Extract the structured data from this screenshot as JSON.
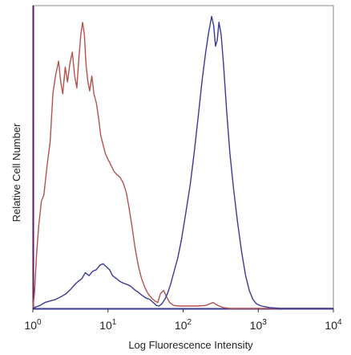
{
  "chart_data": {
    "type": "line",
    "xlabel": "Log Fluorescence Intensity",
    "ylabel": "Relative Cell Number",
    "xscale": "log",
    "xlim": [
      1,
      10000
    ],
    "ylim": [
      0,
      100
    ],
    "grid": false,
    "legend": "none",
    "x_ticks": [
      {
        "base": "10",
        "exp": "0",
        "value": 1
      },
      {
        "base": "10",
        "exp": "1",
        "value": 10
      },
      {
        "base": "10",
        "exp": "2",
        "value": 100
      },
      {
        "base": "10",
        "exp": "3",
        "value": 1000
      },
      {
        "base": "10",
        "exp": "4",
        "value": 10000
      }
    ],
    "series": [
      {
        "color": "#b5524e",
        "points": [
          [
            1.0,
            0
          ],
          [
            1.05,
            5
          ],
          [
            1.12,
            18
          ],
          [
            1.2,
            28
          ],
          [
            1.3,
            36
          ],
          [
            1.4,
            38
          ],
          [
            1.55,
            48
          ],
          [
            1.7,
            56
          ],
          [
            1.85,
            72
          ],
          [
            2.0,
            78
          ],
          [
            2.2,
            83
          ],
          [
            2.35,
            76
          ],
          [
            2.5,
            72
          ],
          [
            2.7,
            81
          ],
          [
            2.9,
            76
          ],
          [
            3.1,
            82
          ],
          [
            3.35,
            86
          ],
          [
            3.6,
            78
          ],
          [
            3.85,
            74
          ],
          [
            4.1,
            84
          ],
          [
            4.35,
            92
          ],
          [
            4.6,
            96
          ],
          [
            4.85,
            92
          ],
          [
            5.1,
            82
          ],
          [
            5.4,
            76
          ],
          [
            5.7,
            73
          ],
          [
            6.1,
            78
          ],
          [
            6.5,
            72
          ],
          [
            7.0,
            69
          ],
          [
            7.5,
            64
          ],
          [
            8.0,
            58
          ],
          [
            8.6,
            55
          ],
          [
            9.2,
            52
          ],
          [
            10.0,
            50
          ],
          [
            11.0,
            48
          ],
          [
            12.0,
            46
          ],
          [
            13.0,
            45
          ],
          [
            14.5,
            44
          ],
          [
            16.0,
            42
          ],
          [
            17.5,
            39
          ],
          [
            19.0,
            34
          ],
          [
            21.0,
            27
          ],
          [
            23.0,
            20
          ],
          [
            25.5,
            14
          ],
          [
            28.0,
            10
          ],
          [
            31.0,
            7
          ],
          [
            34.0,
            5
          ],
          [
            38.0,
            3.5
          ],
          [
            42.0,
            2.5
          ],
          [
            46.0,
            2
          ],
          [
            50.0,
            5
          ],
          [
            55.0,
            6
          ],
          [
            60.0,
            4
          ],
          [
            66.0,
            2
          ],
          [
            75.0,
            1
          ],
          [
            90.0,
            0.8
          ],
          [
            120.0,
            0.8
          ],
          [
            150.0,
            0.8
          ],
          [
            200.0,
            1
          ],
          [
            250.0,
            2
          ],
          [
            290.0,
            1
          ],
          [
            340.0,
            0.3
          ],
          [
            420.0,
            0
          ],
          [
            10000.0,
            0
          ]
        ]
      },
      {
        "color": "#3a3a96",
        "points": [
          [
            1.0,
            0
          ],
          [
            1.1,
            0.5
          ],
          [
            1.25,
            1
          ],
          [
            1.45,
            2
          ],
          [
            1.7,
            2.5
          ],
          [
            2.0,
            3
          ],
          [
            2.4,
            4
          ],
          [
            2.8,
            5
          ],
          [
            3.2,
            6.5
          ],
          [
            3.6,
            8
          ],
          [
            4.0,
            9
          ],
          [
            4.5,
            10
          ],
          [
            5.0,
            12
          ],
          [
            5.6,
            11
          ],
          [
            6.3,
            12.5
          ],
          [
            7.0,
            13
          ],
          [
            7.8,
            14.5
          ],
          [
            8.6,
            15
          ],
          [
            9.5,
            14
          ],
          [
            10.5,
            13
          ],
          [
            11.5,
            11
          ],
          [
            13.0,
            10
          ],
          [
            14.5,
            9
          ],
          [
            16.0,
            8.5
          ],
          [
            18.0,
            8
          ],
          [
            20.0,
            7.5
          ],
          [
            22.0,
            6.5
          ],
          [
            25.0,
            5.5
          ],
          [
            28.0,
            4.5
          ],
          [
            32.0,
            3.5
          ],
          [
            36.0,
            3
          ],
          [
            40.0,
            2
          ],
          [
            44.0,
            1
          ],
          [
            48.0,
            0.8
          ],
          [
            52.0,
            1.5
          ],
          [
            57.0,
            3
          ],
          [
            62.0,
            5
          ],
          [
            68.0,
            8
          ],
          [
            75.0,
            12
          ],
          [
            85.0,
            17
          ],
          [
            95.0,
            23
          ],
          [
            110.0,
            33
          ],
          [
            125.0,
            42
          ],
          [
            140.0,
            52
          ],
          [
            160.0,
            65
          ],
          [
            180.0,
            77
          ],
          [
            200.0,
            86
          ],
          [
            220.0,
            93
          ],
          [
            240.0,
            98
          ],
          [
            255.0,
            95
          ],
          [
            270.0,
            88
          ],
          [
            285.0,
            90
          ],
          [
            300.0,
            96
          ],
          [
            320.0,
            92
          ],
          [
            345.0,
            82
          ],
          [
            380.0,
            66
          ],
          [
            420.0,
            52
          ],
          [
            470.0,
            40
          ],
          [
            530.0,
            29
          ],
          [
            600.0,
            19
          ],
          [
            680.0,
            11
          ],
          [
            760.0,
            6
          ],
          [
            850.0,
            3
          ],
          [
            950.0,
            1.5
          ],
          [
            1100.0,
            0.8
          ],
          [
            1400.0,
            0.3
          ],
          [
            2000.0,
            0
          ],
          [
            10000.0,
            0
          ]
        ]
      }
    ]
  }
}
